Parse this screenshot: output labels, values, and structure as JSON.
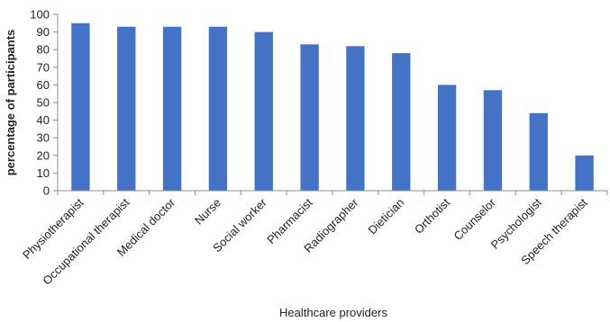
{
  "chart_data": {
    "type": "bar",
    "categories": [
      "Physiotherapist",
      "Occupational therapist",
      "Medical doctor",
      "Nurse",
      "Social worker",
      "Pharmacist",
      "Radiographer",
      "Dietician",
      "Orthotist",
      "Counselor",
      "Psychologist",
      "Speech therapist"
    ],
    "values": [
      95,
      93,
      93,
      93,
      90,
      83,
      82,
      78,
      60,
      57,
      44,
      20
    ],
    "title": "",
    "xlabel": "Healthcare providers",
    "ylabel": "percentage of participants",
    "ylim": [
      0,
      100
    ],
    "yticks": [
      0,
      10,
      20,
      30,
      40,
      50,
      60,
      70,
      80,
      90,
      100
    ],
    "grid": false,
    "bar_color": "#4472c4",
    "axis_color": "#8c8c8c"
  }
}
